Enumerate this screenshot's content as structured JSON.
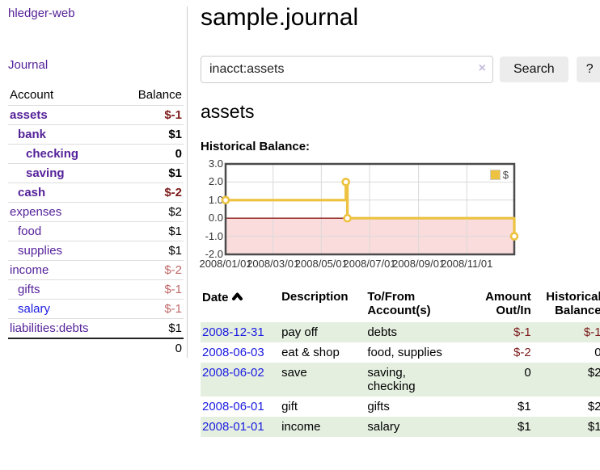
{
  "sidebar": {
    "brand": "hledger-web",
    "journal_label": "Journal",
    "accounts_header": {
      "account": "Account",
      "balance": "Balance"
    },
    "accounts": [
      {
        "name": "assets",
        "depth": 1,
        "bold": true,
        "balance": "$-1",
        "balance_class": "neg-strong",
        "link": "visited"
      },
      {
        "name": "bank",
        "depth": 2,
        "bold": true,
        "balance": "$1",
        "balance_class": "",
        "link": "visited"
      },
      {
        "name": "checking",
        "depth": 3,
        "bold": true,
        "balance": "0",
        "balance_class": "",
        "link": "visited"
      },
      {
        "name": "saving",
        "depth": 3,
        "bold": true,
        "balance": "$1",
        "balance_class": "",
        "link": "visited"
      },
      {
        "name": "cash",
        "depth": 2,
        "bold": true,
        "balance": "$-2",
        "balance_class": "neg-strong",
        "link": "visited"
      },
      {
        "name": "expenses",
        "depth": 1,
        "bold": false,
        "balance": "$2",
        "balance_class": "",
        "link": "visited"
      },
      {
        "name": "food",
        "depth": 2,
        "bold": false,
        "balance": "$1",
        "balance_class": "",
        "link": "visited"
      },
      {
        "name": "supplies",
        "depth": 2,
        "bold": false,
        "balance": "$1",
        "balance_class": "",
        "link": "visited"
      },
      {
        "name": "income",
        "depth": 1,
        "bold": false,
        "balance": "$-2",
        "balance_class": "neg-soft",
        "link": "visited"
      },
      {
        "name": "gifts",
        "depth": 2,
        "bold": false,
        "balance": "$-1",
        "balance_class": "neg-soft",
        "link": "visited"
      },
      {
        "name": "salary",
        "depth": 2,
        "bold": false,
        "balance": "$-1",
        "balance_class": "neg-soft",
        "link": "unvisited"
      },
      {
        "name": "liabilities:debts",
        "depth": 1,
        "bold": false,
        "balance": "$1",
        "balance_class": "",
        "link": "visited"
      }
    ],
    "total": "0"
  },
  "header": {
    "title": "sample.journal"
  },
  "search": {
    "value": "inacct:assets",
    "clear_icon": "×",
    "button_label": "Search",
    "help_label": "?"
  },
  "account_page": {
    "heading": "assets",
    "chart_label": "Historical Balance:"
  },
  "chart_data": {
    "type": "line",
    "title": "Historical Balance:",
    "step": true,
    "series": [
      {
        "name": "$",
        "color": "#edc240",
        "points": [
          [
            "2008-01-01",
            1
          ],
          [
            "2008-06-01",
            2
          ],
          [
            "2008-06-03",
            0
          ],
          [
            "2008-12-31",
            -1
          ]
        ]
      }
    ],
    "x_ticks": [
      "2008/01/01",
      "2008/03/01",
      "2008/05/01",
      "2008/07/01",
      "2008/09/01",
      "2008/11/01"
    ],
    "y_ticks": [
      3.0,
      2.0,
      1.0,
      0.0,
      -1.0,
      -2.0
    ],
    "ylim": [
      -2,
      3
    ],
    "grid": true,
    "legend_position": "top-right",
    "negative_fill": "#fbdcdc",
    "zero_line_color": "#8b1a1a",
    "grid_line_color": "#d9d9d9",
    "border_color": "#4a4a4a"
  },
  "register": {
    "columns": [
      "Date",
      "Description",
      "To/From Account(s)",
      "Amount Out/In",
      "Historical Balance"
    ],
    "rows": [
      {
        "date": "2008-12-31",
        "description": "pay off",
        "accounts": "debts",
        "amount": "$-1",
        "amount_neg": true,
        "balance": "$-1",
        "balance_neg": true
      },
      {
        "date": "2008-06-03",
        "description": "eat & shop",
        "accounts": "food, supplies",
        "amount": "$-2",
        "amount_neg": true,
        "balance": "0",
        "balance_neg": false
      },
      {
        "date": "2008-06-02",
        "description": "save",
        "accounts": "saving, checking",
        "amount": "0",
        "amount_neg": false,
        "balance": "$2",
        "balance_neg": false
      },
      {
        "date": "2008-06-01",
        "description": "gift",
        "accounts": "gifts",
        "amount": "$1",
        "amount_neg": false,
        "balance": "$2",
        "balance_neg": false
      },
      {
        "date": "2008-01-01",
        "description": "income",
        "accounts": "salary",
        "amount": "$1",
        "amount_neg": false,
        "balance": "$1",
        "balance_neg": false
      }
    ]
  }
}
